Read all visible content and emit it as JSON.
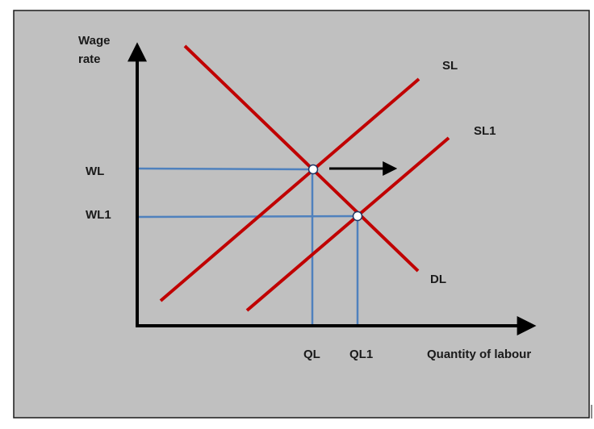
{
  "diagram": {
    "y_axis_label_line1": "Wage",
    "y_axis_label_line2": "rate",
    "x_axis_label": "Quantity of labour",
    "curves": {
      "supply": "SL",
      "supply_shifted": "SL1",
      "demand": "DL"
    },
    "wage_levels": [
      "WL",
      "WL1"
    ],
    "quantity_levels": [
      "QL",
      "QL1"
    ],
    "shift_direction": "right",
    "colors": {
      "background": "#c0c0c0",
      "curve": "#c00000",
      "guide": "#4f81bd",
      "axis": "#000000",
      "marker_fill": "#ffffff"
    }
  }
}
